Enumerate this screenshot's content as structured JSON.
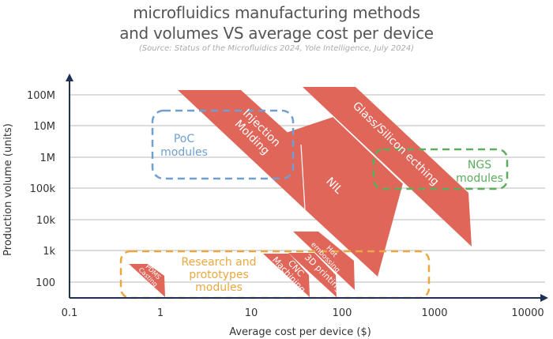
{
  "chart_data": {
    "type": "region-diagram",
    "title_line1": "microfluidics manufacturing methods",
    "title_line2": "and volumes VS average cost per device",
    "subtitle": "(Source: Status of the Microfluidics 2024, Yole Intelligence, July 2024)",
    "xlabel": "Average cost per device ($)",
    "ylabel": "Production volume (units)",
    "xscale": "log",
    "yscale": "log",
    "xlim": [
      0.1,
      10000
    ],
    "ylim": [
      30,
      200000000
    ],
    "x_ticks": [
      "0.1",
      "1",
      "10",
      "100",
      "1000",
      "10000"
    ],
    "y_ticks": [
      "100M",
      "10M",
      "1M",
      "100k",
      "10k",
      "1k",
      "100"
    ],
    "grid": "horizontal",
    "color": "#e0665a",
    "methods": [
      {
        "name": "Injection Molding",
        "cost_range": [
          1.5,
          35
        ],
        "volume_range": [
          20000,
          150000000
        ]
      },
      {
        "name": "NIL",
        "cost_range": [
          25,
          350
        ],
        "volume_range": [
          150,
          15000000
        ]
      },
      {
        "name": "Glass/Silicon ecthing",
        "cost_range": [
          40,
          2500
        ],
        "volume_range": [
          1500,
          180000000
        ]
      },
      {
        "name": "Hot embossing",
        "cost_range": [
          40,
          130
        ],
        "volume_range": [
          150,
          2500
        ]
      },
      {
        "name": "3D printing",
        "cost_range": [
          35,
          100
        ],
        "volume_range": [
          30,
          1000
        ]
      },
      {
        "name": "CNC Machining",
        "cost_range": [
          15,
          50
        ],
        "volume_range": [
          30,
          1000
        ]
      },
      {
        "name": "PDMS Casting",
        "cost_range": [
          0.45,
          1.1
        ],
        "volume_range": [
          30,
          300
        ]
      }
    ],
    "groups": [
      {
        "name": "PoC modules",
        "color": "#6f9fd0"
      },
      {
        "name": "NGS modules",
        "color": "#5cad5c"
      },
      {
        "name": "Research and prototypes modules",
        "color": "#eba840"
      }
    ]
  },
  "labels": {
    "poc": [
      "PoC",
      "modules"
    ],
    "ngs": [
      "NGS",
      "modules"
    ],
    "research": [
      "Research and",
      "prototypes",
      "modules"
    ],
    "im": [
      "Injection",
      "Molding"
    ],
    "nil": "NIL",
    "glass": "Glass/Silicon ecthing",
    "hot": [
      "Hot",
      "embossing"
    ],
    "print": "3D printing",
    "cnc": [
      "CNC",
      "Machining"
    ],
    "pdms": [
      "PDMS",
      "Casting"
    ]
  }
}
